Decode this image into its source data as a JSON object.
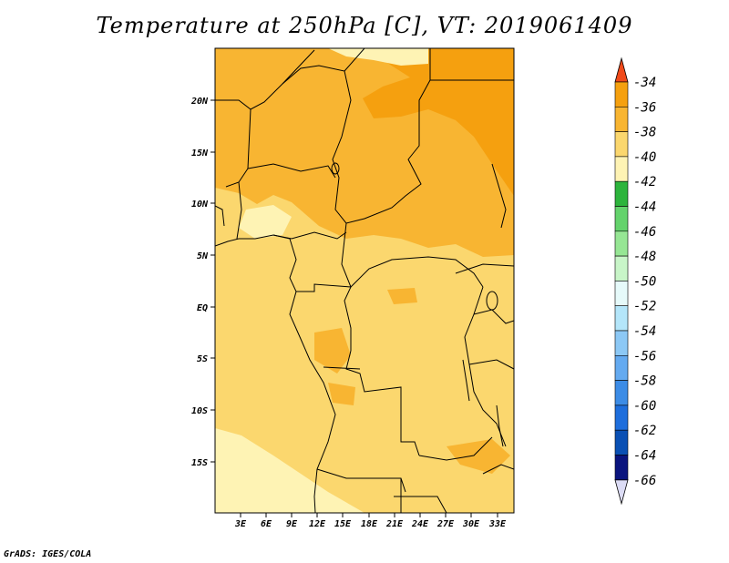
{
  "title": "Temperature at 250hPa [C], VT: 2019061409",
  "credit": "GrADS: IGES/COLA",
  "map": {
    "lat_labels": [
      "20N",
      "15N",
      "10N",
      "5N",
      "EQ",
      "5S",
      "10S",
      "15S"
    ],
    "lon_labels": [
      "3E",
      "6E",
      "9E",
      "12E",
      "15E",
      "18E",
      "21E",
      "24E",
      "27E",
      "30E",
      "33E"
    ]
  },
  "colorbar": {
    "labels": [
      "-34",
      "-36",
      "-38",
      "-40",
      "-42",
      "-44",
      "-46",
      "-48",
      "-50",
      "-52",
      "-54",
      "-56",
      "-58",
      "-60",
      "-62",
      "-64",
      "-66"
    ],
    "colors": [
      "#f05a1e",
      "#f5a00f",
      "#f8b532",
      "#fbd76e",
      "#fef3b4",
      "#2db43c",
      "#64d36c",
      "#96e694",
      "#c8f5c8",
      "#e6fafa",
      "#b4e6fa",
      "#8cc8f5",
      "#64aaf0",
      "#3c8ce6",
      "#1e6edc",
      "#0a50b4",
      "#0a147e",
      "#dcdcf5"
    ],
    "top_color": "#f04a1a",
    "bottom_color": "#dcdcf5"
  },
  "colors": {
    "base": "#fbd76e",
    "warm": "#f8b532",
    "warmer": "#f5a00f",
    "cool": "#fef3b4",
    "border": "#000000"
  }
}
